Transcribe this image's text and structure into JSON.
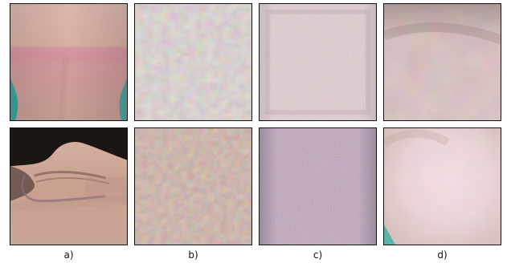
{
  "figure": {
    "columns": [
      {
        "id": "a",
        "label": "a)"
      },
      {
        "id": "b",
        "label": "b)"
      },
      {
        "id": "c",
        "label": "c)"
      },
      {
        "id": "d",
        "label": "d)"
      }
    ]
  }
}
